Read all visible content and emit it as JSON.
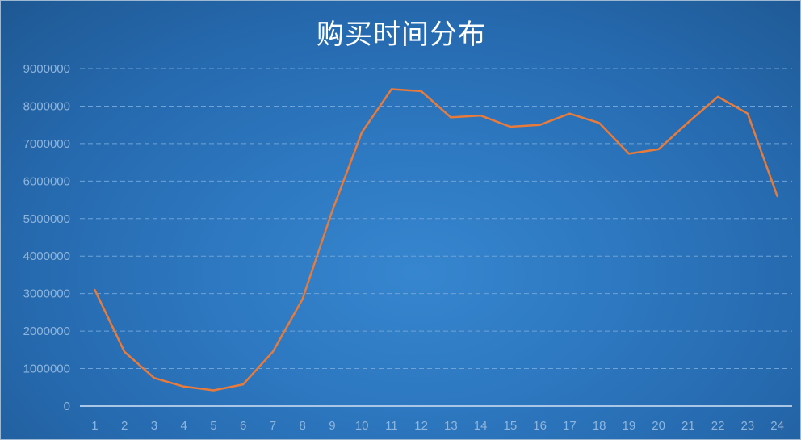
{
  "chart_data": {
    "type": "line",
    "title": "购买时间分布",
    "xlabel": "",
    "ylabel": "",
    "categories": [
      "1",
      "2",
      "3",
      "4",
      "5",
      "6",
      "7",
      "8",
      "9",
      "10",
      "11",
      "12",
      "13",
      "14",
      "15",
      "16",
      "17",
      "18",
      "19",
      "20",
      "21",
      "22",
      "23",
      "24"
    ],
    "series": [
      {
        "values": [
          3100000,
          1450000,
          750000,
          520000,
          420000,
          580000,
          1450000,
          2850000,
          5200000,
          7300000,
          8450000,
          8400000,
          7700000,
          7750000,
          7450000,
          7500000,
          7800000,
          7550000,
          6730000,
          6850000,
          7570000,
          8250000,
          7800000,
          5600000
        ],
        "color": "#e87b3a"
      }
    ],
    "ylim": [
      0,
      9000000
    ],
    "yticks": [
      "0",
      "1000000",
      "2000000",
      "3000000",
      "4000000",
      "5000000",
      "6000000",
      "7000000",
      "8000000",
      "9000000"
    ],
    "grid": true,
    "legend": "none"
  }
}
